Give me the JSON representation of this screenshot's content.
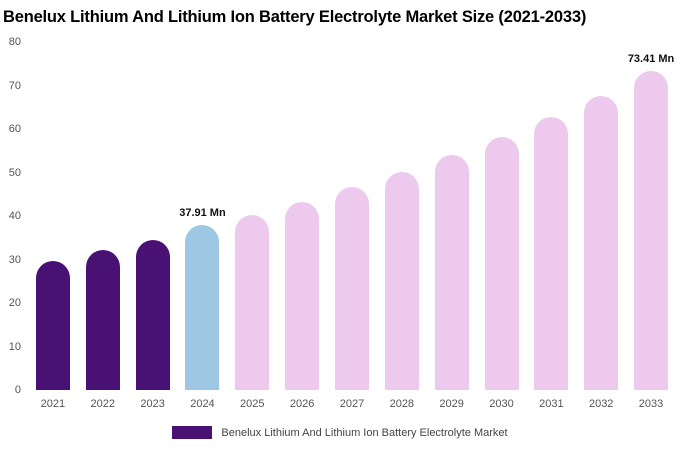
{
  "chart_data": {
    "type": "bar",
    "title": "Benelux Lithium And Lithium Ion Battery Electrolyte Market Size (2021-2033)",
    "xlabel": "",
    "ylabel": "",
    "ylim": [
      0,
      80
    ],
    "yticks": [
      0,
      10,
      20,
      30,
      40,
      50,
      60,
      70,
      80
    ],
    "grid": false,
    "legend_position": "bottom",
    "categories": [
      "2021",
      "2022",
      "2023",
      "2024",
      "2025",
      "2026",
      "2027",
      "2028",
      "2029",
      "2030",
      "2031",
      "2032",
      "2033"
    ],
    "values": [
      29.6,
      32.1,
      34.5,
      37.91,
      40.3,
      43.3,
      46.6,
      50.2,
      54.1,
      58.2,
      62.8,
      67.6,
      73.41
    ],
    "bar_colors": [
      "#481173",
      "#481173",
      "#481173",
      "#9dc7e3",
      "#ecc9ed",
      "#ecc9ed",
      "#ecc9ed",
      "#ecc9ed",
      "#ecc9ed",
      "#ecc9ed",
      "#ecc9ed",
      "#ecc9ed",
      "#ecc9ed"
    ],
    "segment_colors": {
      "historical": "#481173",
      "current_year": "#9dc7e3",
      "forecast": "#ecc9ed"
    },
    "annotations": [
      {
        "index": 3,
        "text": "37.91 Mn"
      },
      {
        "index": 12,
        "text": "73.41 Mn"
      }
    ],
    "legend": [
      {
        "label": "Benelux Lithium And Lithium Ion Battery Electrolyte Market",
        "color": "#481173"
      }
    ]
  }
}
